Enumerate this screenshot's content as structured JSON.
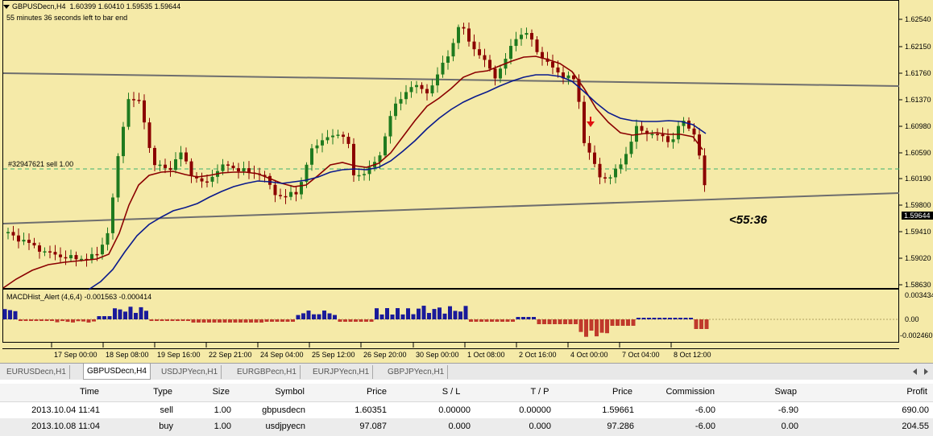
{
  "chart_header": {
    "symbol": "GBPUSDecn,H4",
    "ohlc": "1.60399 1.60410 1.59535 1.59644",
    "timer_text": "55 minutes 36 seconds left to bar end",
    "order_label": "#32947621 sell 1.00",
    "countdown": "<55:36"
  },
  "price_axis": {
    "labels": [
      "1.62540",
      "1.62150",
      "1.61760",
      "1.61370",
      "1.60980",
      "1.60590",
      "1.60190",
      "1.59800",
      "1.59410",
      "1.59020",
      "1.58630"
    ],
    "current_price": "1.59644"
  },
  "indicator": {
    "title": "MACDHist_Alert (4,6,4)",
    "values": "-0.001563 -0.000414",
    "axis_labels": [
      "0.003434",
      "0.00",
      "-0.002460"
    ]
  },
  "time_axis": {
    "labels": [
      "17 Sep 00:00",
      "18 Sep 08:00",
      "19 Sep 16:00",
      "22 Sep 21:00",
      "24 Sep 04:00",
      "25 Sep 12:00",
      "26 Sep 20:00",
      "30 Sep 00:00",
      "1 Oct 08:00",
      "2 Oct 16:00",
      "4 Oct 00:00",
      "7 Oct 04:00",
      "8 Oct 12:00"
    ]
  },
  "tabs": [
    {
      "label": "EURUSDecn,H1",
      "active": false
    },
    {
      "label": "GBPUSDecn,H4",
      "active": true
    },
    {
      "label": "USDJPYecn,H1",
      "active": false
    },
    {
      "label": "EURGBPecn,H1",
      "active": false
    },
    {
      "label": "EURJPYecn,H1",
      "active": false
    },
    {
      "label": "GBPJPYecn,H1",
      "active": false
    }
  ],
  "colors": {
    "background": "#f5eaa8",
    "bull": "#1f7a1f",
    "bear": "#8b0000",
    "ma_fast": "#8b0000",
    "ma_slow": "#0a1a8c",
    "hist_pos": "#1a1a9a",
    "hist_neg": "#c0392b"
  },
  "terminal": {
    "columns": {
      "time": "Time",
      "type": "Type",
      "size": "Size",
      "symbol": "Symbol",
      "price": "Price",
      "sl": "S / L",
      "tp": "T / P",
      "cur_price": "Price",
      "commission": "Commission",
      "swap": "Swap",
      "profit": "Profit"
    },
    "rows": [
      {
        "time": "2013.10.04 11:41",
        "type": "sell",
        "size": "1.00",
        "symbol": "gbpusdecn",
        "price": "1.60351",
        "sl": "0.00000",
        "tp": "0.00000",
        "cur_price": "1.59661",
        "commission": "-6.00",
        "swap": "-6.90",
        "profit": "690.00"
      },
      {
        "time": "2013.10.08 11:04",
        "type": "buy",
        "size": "1.00",
        "symbol": "usdjpyecn",
        "price": "97.087",
        "sl": "0.000",
        "tp": "0.000",
        "cur_price": "97.286",
        "commission": "-6.00",
        "swap": "0.00",
        "profit": "204.55"
      }
    ]
  }
}
